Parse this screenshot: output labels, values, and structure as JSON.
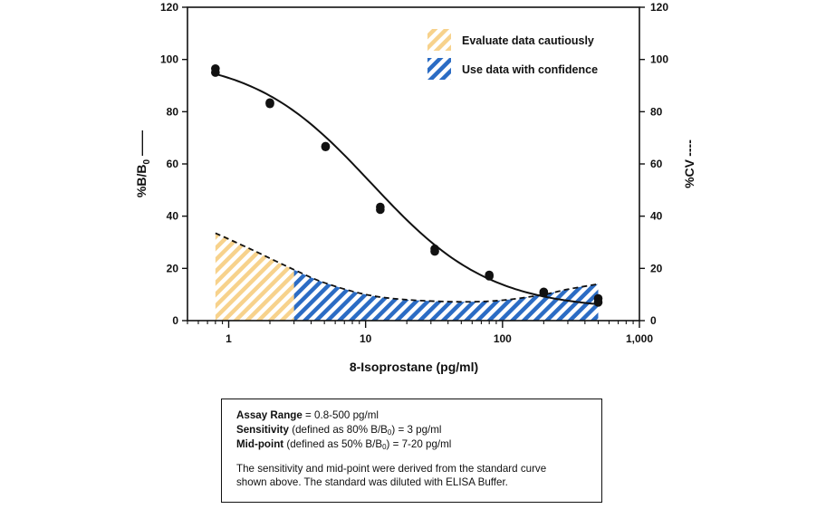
{
  "chart_data": {
    "type": "line",
    "xlabel": "8-Isoprostane (pg/ml)",
    "x_scale": "log",
    "xlim": [
      0.5,
      1000
    ],
    "x_ticks": [
      {
        "value": 1,
        "label": "1"
      },
      {
        "value": 10,
        "label": "10"
      },
      {
        "value": 100,
        "label": "100"
      },
      {
        "value": 1000,
        "label": "1,000"
      }
    ],
    "ylabel_left": {
      "main": "%B/B",
      "sub": "0",
      "style_hint": "——"
    },
    "ylabel_right": {
      "main": "%CV",
      "style_hint": "----"
    },
    "ylim": [
      0,
      120
    ],
    "y_ticks": [
      0,
      20,
      40,
      60,
      80,
      100,
      120
    ],
    "colors": {
      "caution": "#f7d28c",
      "confidence": "#2b6cc4",
      "curve": "#111111"
    },
    "legend": [
      {
        "label": "Evaluate data cautiously",
        "pattern": "caution"
      },
      {
        "label": "Use data with confidence",
        "pattern": "confidence"
      }
    ],
    "series": [
      {
        "name": "%B/B0 standard curve",
        "axis": "left",
        "style": "solid",
        "points": [
          {
            "x": 0.8,
            "y": 96.5
          },
          {
            "x": 0.8,
            "y": 95.0
          },
          {
            "x": 2.0,
            "y": 83.5
          },
          {
            "x": 2.0,
            "y": 83.0
          },
          {
            "x": 5.1,
            "y": 66.8
          },
          {
            "x": 5.1,
            "y": 66.5
          },
          {
            "x": 12.8,
            "y": 43.5
          },
          {
            "x": 12.8,
            "y": 42.5
          },
          {
            "x": 32.0,
            "y": 27.5
          },
          {
            "x": 32.0,
            "y": 26.5
          },
          {
            "x": 80.0,
            "y": 17.5
          },
          {
            "x": 80.0,
            "y": 17.0
          },
          {
            "x": 200.0,
            "y": 11.0
          },
          {
            "x": 200.0,
            "y": 10.5
          },
          {
            "x": 500.0,
            "y": 8.5
          },
          {
            "x": 500.0,
            "y": 7.0
          }
        ],
        "fit": {
          "model": "4PL",
          "top": 101,
          "bottom": 4.2,
          "ec50": 11,
          "hill": 1.0
        }
      },
      {
        "name": "%CV",
        "axis": "right",
        "style": "dashed",
        "points": [
          {
            "x": 0.8,
            "y": 33.5
          },
          {
            "x": 1.5,
            "y": 27
          },
          {
            "x": 3.0,
            "y": 19.5
          },
          {
            "x": 5.0,
            "y": 14.5
          },
          {
            "x": 10,
            "y": 10
          },
          {
            "x": 20,
            "y": 8
          },
          {
            "x": 50,
            "y": 7.2
          },
          {
            "x": 100,
            "y": 7.8
          },
          {
            "x": 200,
            "y": 10
          },
          {
            "x": 300,
            "y": 12
          },
          {
            "x": 500,
            "y": 14
          }
        ]
      }
    ],
    "regions": [
      {
        "label": "Evaluate data cautiously",
        "x_from": 0.8,
        "x_to": 3.0,
        "pattern": "caution"
      },
      {
        "label": "Use data with confidence",
        "x_from": 3.0,
        "x_to": 500,
        "pattern": "confidence"
      }
    ]
  },
  "info_box": {
    "assay_range": {
      "bold": "Assay Range",
      "rest": " = 0.8-500 pg/ml"
    },
    "sensitivity": {
      "bold": "Sensitivity",
      "rest_a": " (defined as 80% B/B",
      "sub": "0",
      "rest_b": ") = 3 pg/ml"
    },
    "midpoint": {
      "bold": "Mid-point",
      "rest_a": " (defined as 50% B/B",
      "sub": "0",
      "rest_b": ") = 7-20 pg/ml"
    },
    "note_line1": "The sensitivity and mid-point were derived from the standard curve",
    "note_line2": "shown above. The standard was diluted with ELISA Buffer."
  }
}
